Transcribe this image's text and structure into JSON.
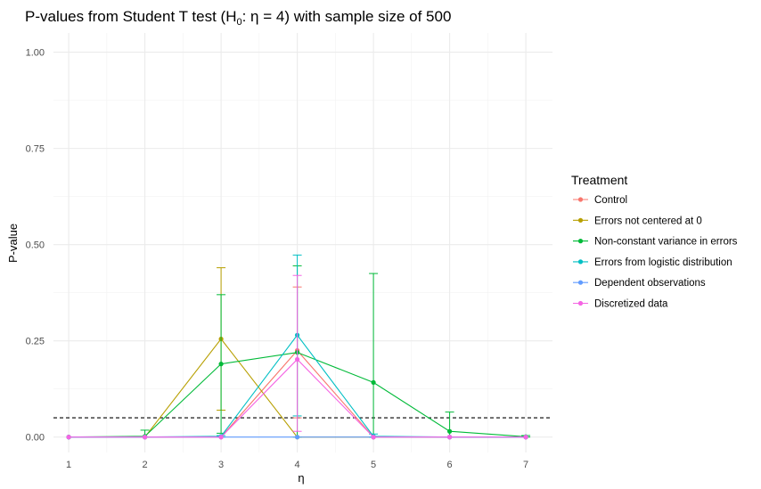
{
  "chart_data": {
    "type": "line",
    "title": {
      "prefix": "P-values from Student T test (H",
      "subscript": "0",
      "suffix": ": η = 4) with sample size of 500"
    },
    "xlabel": "η",
    "ylabel": "P-value",
    "x": [
      1,
      2,
      3,
      4,
      5,
      6,
      7
    ],
    "xlim": [
      0.8,
      7.35
    ],
    "ylim": [
      -0.04,
      1.05
    ],
    "y_ticks": [
      0,
      0.25,
      0.5,
      0.75,
      1.0
    ],
    "y_tick_labels": [
      "0.00",
      "0.25",
      "0.50",
      "0.75",
      "1.00"
    ],
    "x_tick_labels": [
      "1",
      "2",
      "3",
      "4",
      "5",
      "6",
      "7"
    ],
    "grid": true,
    "reference_line": {
      "y": 0.05,
      "style": "dashed",
      "color": "#000000"
    },
    "legend": {
      "title": "Treatment",
      "position": "right"
    },
    "series": [
      {
        "name": "Control",
        "color": "#F8766D",
        "values": [
          0,
          0,
          0,
          0.225,
          0,
          0,
          0
        ],
        "error_low": [
          0,
          0,
          0,
          0.05,
          0,
          0,
          0
        ],
        "error_high": [
          0,
          0,
          0,
          0.39,
          0,
          0,
          0
        ]
      },
      {
        "name": "Errors not centered at 0",
        "color": "#B79F00",
        "values": [
          0,
          0,
          0.255,
          0,
          0,
          0,
          0
        ],
        "error_low": [
          0,
          0,
          0.07,
          0,
          0,
          0,
          0
        ],
        "error_high": [
          0,
          0,
          0.44,
          0,
          0,
          0,
          0
        ]
      },
      {
        "name": "Non-constant variance in errors",
        "color": "#00BA38",
        "values": [
          0,
          0.002,
          0.19,
          0.22,
          0.142,
          0.015,
          0.001
        ],
        "error_low": [
          0,
          0,
          0.01,
          0.0,
          0,
          0,
          0
        ],
        "error_high": [
          0,
          0.018,
          0.37,
          0.445,
          0.425,
          0.065,
          0.004
        ]
      },
      {
        "name": "Errors from logistic distribution",
        "color": "#00BFC4",
        "values": [
          0,
          0,
          0.002,
          0.265,
          0.002,
          0,
          0
        ],
        "error_low": [
          0,
          0,
          0,
          0.055,
          0,
          0,
          0
        ],
        "error_high": [
          0,
          0,
          0.004,
          0.473,
          0.008,
          0,
          0
        ]
      },
      {
        "name": "Dependent observations",
        "color": "#619CFF",
        "values": [
          0,
          0,
          0,
          0,
          0,
          0,
          0
        ],
        "error_low": [
          0,
          0,
          0,
          0,
          0,
          0,
          0
        ],
        "error_high": [
          0,
          0,
          0,
          0,
          0,
          0,
          0
        ]
      },
      {
        "name": "Discretized data",
        "color": "#F564E3",
        "values": [
          0,
          0,
          0,
          0.202,
          0,
          0,
          0
        ],
        "error_low": [
          0,
          0,
          0,
          0.015,
          0,
          0,
          0
        ],
        "error_high": [
          0,
          0,
          0,
          0.42,
          0,
          0,
          0
        ]
      }
    ]
  }
}
